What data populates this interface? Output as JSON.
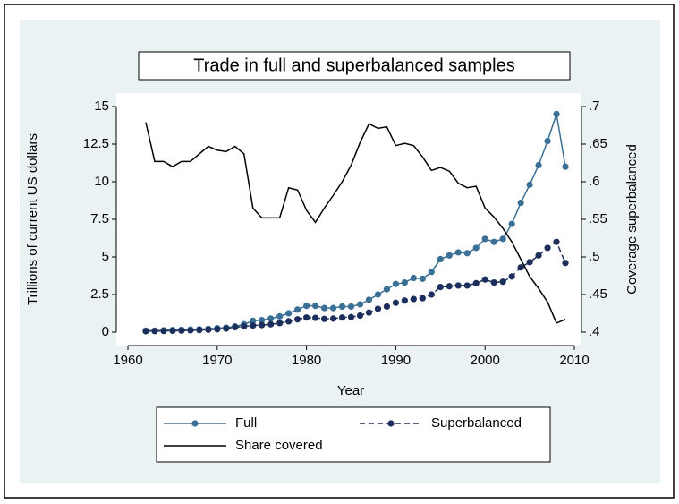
{
  "chart_data": {
    "type": "line",
    "title": "Trade in full and superbalanced samples",
    "x_label": "Year",
    "y_label": "Trillions of current US dollars",
    "y2_label": "Coverage superbalanced",
    "x": [
      1962,
      1963,
      1964,
      1965,
      1966,
      1967,
      1968,
      1969,
      1970,
      1971,
      1972,
      1973,
      1974,
      1975,
      1976,
      1977,
      1978,
      1979,
      1980,
      1981,
      1982,
      1983,
      1984,
      1985,
      1986,
      1987,
      1988,
      1989,
      1990,
      1991,
      1992,
      1993,
      1994,
      1995,
      1996,
      1997,
      1998,
      1999,
      2000,
      2001,
      2002,
      2003,
      2004,
      2005,
      2006,
      2007,
      2008,
      2009
    ],
    "series": [
      {
        "name": "Full",
        "color": "#3a6f96",
        "dash": false,
        "markers": true,
        "axis": "y",
        "values": [
          0.1,
          0.1,
          0.12,
          0.14,
          0.16,
          0.17,
          0.19,
          0.22,
          0.26,
          0.3,
          0.38,
          0.52,
          0.75,
          0.8,
          0.9,
          1.05,
          1.25,
          1.5,
          1.75,
          1.75,
          1.6,
          1.6,
          1.7,
          1.7,
          1.85,
          2.15,
          2.5,
          2.85,
          3.2,
          3.3,
          3.6,
          3.55,
          4.0,
          4.85,
          5.1,
          5.3,
          5.25,
          5.6,
          6.2,
          6.0,
          6.2,
          7.2,
          8.6,
          9.8,
          11.1,
          12.7,
          14.5,
          11.0
        ]
      },
      {
        "name": "Superbalanced",
        "color": "#1c2f5c",
        "dash": true,
        "markers": true,
        "axis": "y",
        "values": [
          0.06,
          0.07,
          0.08,
          0.09,
          0.1,
          0.12,
          0.14,
          0.16,
          0.19,
          0.24,
          0.33,
          0.38,
          0.44,
          0.47,
          0.52,
          0.6,
          0.72,
          0.85,
          0.97,
          0.95,
          0.88,
          0.9,
          0.97,
          1.0,
          1.1,
          1.3,
          1.55,
          1.7,
          1.95,
          2.1,
          2.2,
          2.25,
          2.5,
          3.0,
          3.05,
          3.1,
          3.1,
          3.25,
          3.5,
          3.3,
          3.35,
          3.7,
          4.3,
          4.65,
          5.1,
          5.6,
          6.0,
          4.6
        ]
      },
      {
        "name": "Share covered",
        "color": "#000000",
        "dash": false,
        "markers": false,
        "axis": "y2",
        "values": [
          0.679,
          0.627,
          0.627,
          0.62,
          0.627,
          0.627,
          0.637,
          0.647,
          0.642,
          0.64,
          0.647,
          0.637,
          0.565,
          0.552,
          0.552,
          0.552,
          0.592,
          0.589,
          0.562,
          0.546,
          0.565,
          0.582,
          0.6,
          0.622,
          0.652,
          0.677,
          0.671,
          0.673,
          0.648,
          0.651,
          0.648,
          0.633,
          0.615,
          0.619,
          0.614,
          0.598,
          0.592,
          0.594,
          0.565,
          0.553,
          0.538,
          0.52,
          0.497,
          0.474,
          0.458,
          0.44,
          0.412,
          0.417
        ]
      }
    ],
    "xlim": [
      1960,
      2010
    ],
    "xticks": [
      1960,
      1970,
      1980,
      1990,
      2000,
      2010
    ],
    "ylim": [
      0,
      15
    ],
    "yticks": [
      0,
      2.5,
      5,
      7.5,
      10,
      12.5,
      15
    ],
    "y2lim": [
      0.4,
      0.7
    ],
    "y2ticks": [
      {
        "value": 0.4,
        "label": ".4"
      },
      {
        "value": 0.45,
        "label": ".45"
      },
      {
        "value": 0.5,
        "label": ".5"
      },
      {
        "value": 0.55,
        "label": ".55"
      },
      {
        "value": 0.6,
        "label": ".6"
      },
      {
        "value": 0.65,
        "label": ".65"
      },
      {
        "value": 0.7,
        "label": ".7"
      }
    ],
    "grid": false,
    "legend": "bottom"
  }
}
